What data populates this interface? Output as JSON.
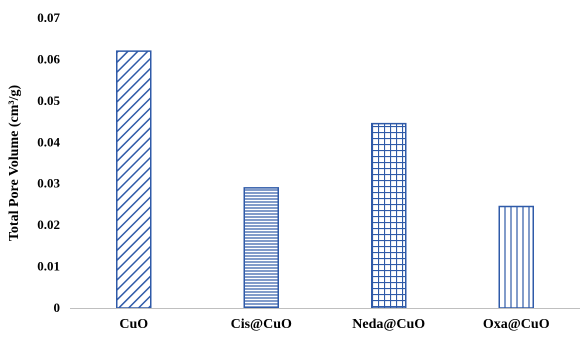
{
  "colors": {
    "bar_stroke": "#2f5aa8",
    "bar_pattern": "#2f5aa8",
    "axis": "#bfbfbf",
    "text": "#000000"
  },
  "chart_data": {
    "type": "bar",
    "title": "",
    "xlabel": "",
    "ylabel": "Total Pore Volume (cm³/g)",
    "categories": [
      "CuO",
      "Cis@CuO",
      "Neda@CuO",
      "Oxa@CuO"
    ],
    "values": [
      0.062,
      0.029,
      0.0445,
      0.0245
    ],
    "patterns": [
      "diagonal",
      "horizontal",
      "grid",
      "vertical"
    ],
    "ylim": [
      0,
      0.07
    ],
    "yticks": [
      "0",
      "0.01",
      "0.02",
      "0.03",
      "0.04",
      "0.05",
      "0.06",
      "0.07"
    ],
    "ytick_values": [
      0,
      0.01,
      0.02,
      0.03,
      0.04,
      0.05,
      0.06,
      0.07
    ],
    "grid": false,
    "legend": "none"
  }
}
